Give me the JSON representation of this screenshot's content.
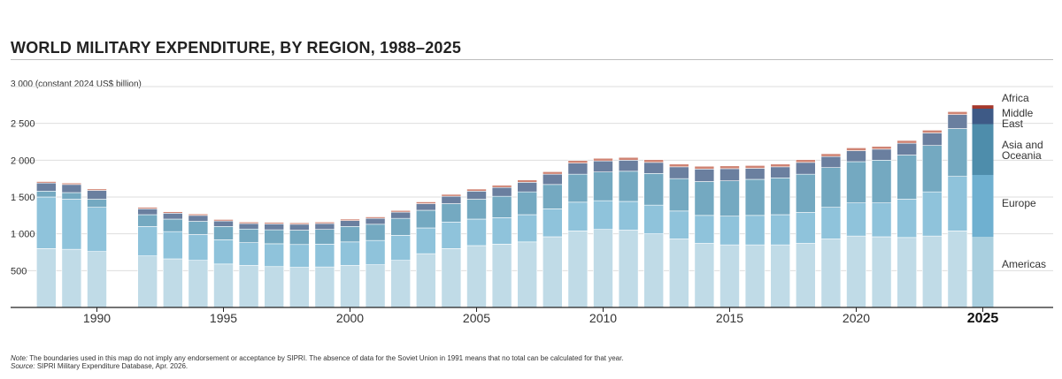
{
  "title": "WORLD MILITARY EXPENDITURE, BY REGION, 1988–2025",
  "unit_label": "(constant 2024 US$ billion)",
  "note_label": "Note:",
  "note_text": "The boundaries used in this map do not imply any endorsement or acceptance by SIPRI. The absence of data for the Soviet Union in 1991 means that no total can be calculated for that year.",
  "source_label": "Source:",
  "source_text": "SIPRI Military Expenditure Database, Apr. 2026.",
  "chart_data": {
    "type": "bar",
    "stacked": true,
    "title": "WORLD MILITARY EXPENDITURE, BY REGION, 1988–2025",
    "ylabel": "(constant 2024 US$ billion)",
    "ylim": [
      0,
      3000
    ],
    "yticks": [
      500,
      1000,
      1500,
      2000,
      2500,
      3000
    ],
    "ytick_labels": [
      "500",
      "1 000",
      "1 500",
      "2 000",
      "2 500",
      "3 000"
    ],
    "xticks": [
      1990,
      1995,
      2000,
      2005,
      2010,
      2015,
      2020,
      2025
    ],
    "xtick_labels": [
      "1990",
      "1995",
      "2000",
      "2005",
      "2010",
      "2015",
      "2020",
      "2025"
    ],
    "highlight_year": 2025,
    "grid": true,
    "legend_position": "right",
    "categories": [
      1988,
      1989,
      1990,
      1991,
      1992,
      1993,
      1994,
      1995,
      1996,
      1997,
      1998,
      1999,
      2000,
      2001,
      2002,
      2003,
      2004,
      2005,
      2006,
      2007,
      2008,
      2009,
      2010,
      2011,
      2012,
      2013,
      2014,
      2015,
      2016,
      2017,
      2018,
      2019,
      2020,
      2021,
      2022,
      2023,
      2024,
      2025
    ],
    "series": [
      {
        "name": "Americas",
        "color": "#c0dbe7",
        "highlight_color": "#a9cfdf",
        "values": [
          800,
          790,
          760,
          null,
          700,
          660,
          640,
          590,
          570,
          555,
          545,
          550,
          570,
          580,
          640,
          730,
          800,
          840,
          860,
          890,
          960,
          1040,
          1060,
          1050,
          1000,
          930,
          870,
          850,
          850,
          850,
          870,
          930,
          970,
          960,
          950,
          970,
          1040,
          960
        ]
      },
      {
        "name": "Europe",
        "color": "#8fc3db",
        "highlight_color": "#6fb0d0",
        "values": [
          700,
          680,
          600,
          null,
          400,
          370,
          350,
          330,
          310,
          310,
          310,
          310,
          320,
          330,
          340,
          350,
          360,
          360,
          360,
          370,
          380,
          390,
          390,
          390,
          390,
          380,
          380,
          390,
          400,
          410,
          420,
          430,
          450,
          460,
          520,
          600,
          740,
          840
        ]
      },
      {
        "name": "Asia and Oceania",
        "color": "#74a9c1",
        "highlight_color": "#4e8dab",
        "values": [
          80,
          90,
          110,
          null,
          160,
          170,
          180,
          180,
          185,
          190,
          195,
          200,
          210,
          220,
          230,
          240,
          250,
          270,
          290,
          310,
          330,
          380,
          390,
          410,
          430,
          440,
          460,
          480,
          490,
          500,
          520,
          540,
          560,
          580,
          600,
          630,
          650,
          690
        ]
      },
      {
        "name": "Middle East",
        "color": "#6a7f9f",
        "highlight_color": "#3e5a86",
        "values": [
          110,
          110,
          120,
          null,
          80,
          80,
          80,
          75,
          75,
          80,
          80,
          80,
          80,
          80,
          85,
          90,
          100,
          110,
          120,
          130,
          140,
          150,
          150,
          150,
          150,
          160,
          170,
          165,
          150,
          150,
          160,
          150,
          150,
          150,
          160,
          170,
          190,
          210
        ]
      },
      {
        "name": "Africa",
        "color": "#cf8474",
        "highlight_color": "#a5382c",
        "values": [
          20,
          20,
          20,
          null,
          20,
          20,
          20,
          20,
          20,
          20,
          20,
          20,
          20,
          20,
          22,
          24,
          26,
          28,
          30,
          32,
          34,
          36,
          36,
          38,
          38,
          38,
          38,
          38,
          38,
          38,
          38,
          38,
          38,
          38,
          38,
          38,
          40,
          46
        ]
      }
    ],
    "legend": [
      "Africa",
      "Middle East",
      "Asia and Oceania",
      "Europe",
      "Americas"
    ]
  }
}
